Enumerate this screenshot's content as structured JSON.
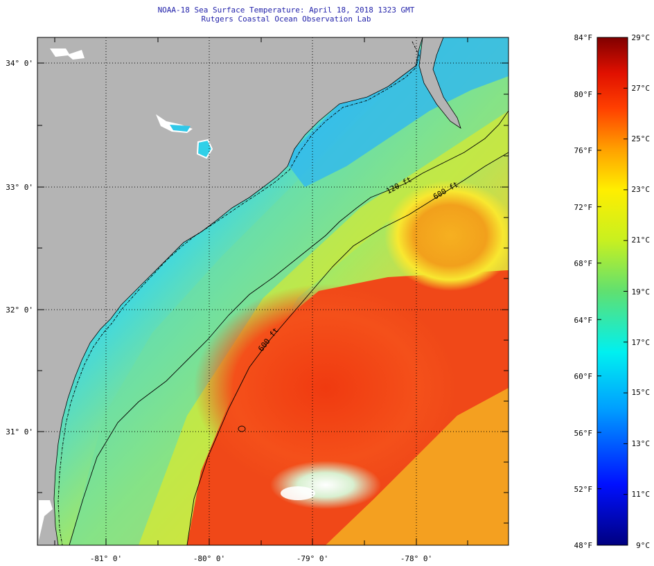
{
  "header": {
    "title": "NOAA-18 Sea Surface Temperature:  April 18, 2018 1323 GMT",
    "subtitle": "Rutgers Coastal Ocean Observation Lab"
  },
  "map": {
    "lon_labels": [
      "-81° 0'",
      "-80° 0'",
      "-79° 0'",
      "-78° 0'"
    ],
    "lat_labels": [
      "34° 0'",
      "33° 0'",
      "32° 0'",
      "31° 0'"
    ],
    "contours": [
      "120 ft",
      "600 ft",
      "600 ft"
    ]
  },
  "colorbar": {
    "fahrenheit": [
      "84°F",
      "80°F",
      "76°F",
      "72°F",
      "68°F",
      "64°F",
      "60°F",
      "56°F",
      "52°F",
      "48°F"
    ],
    "celsius": [
      "29°C",
      "27°C",
      "25°C",
      "23°C",
      "21°C",
      "19°C",
      "17°C",
      "15°C",
      "13°C",
      "11°C",
      "9°C"
    ]
  },
  "colors": {
    "land": "#b4b4b4",
    "title": "#2222aa"
  }
}
